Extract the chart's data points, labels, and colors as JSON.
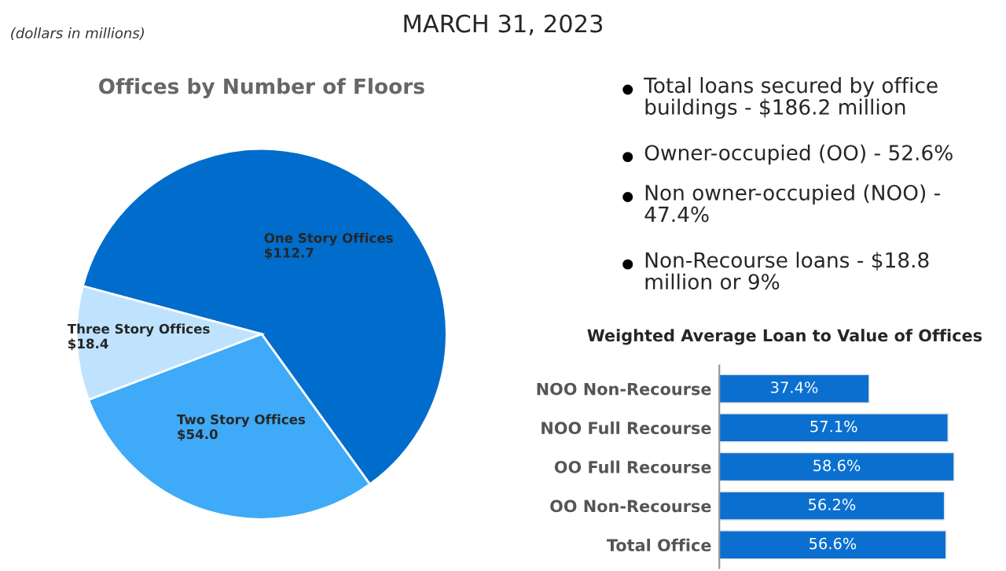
{
  "chart_data": [
    {
      "type": "other",
      "title": "MARCH 31, 2023",
      "annotations": [
        "(dollars in millions)",
        "Total loans secured by office\nbuildings - $186.2 million",
        "Owner-occupied (OO) - 52.6%",
        "Non owner-occupied (NOO) -\n47.4%",
        "Non-Recourse loans - $18.8\nmillion or 9%"
      ]
    },
    {
      "type": "pie",
      "title": "Offices by Number of Floors",
      "categories": [
        "One Story Offices",
        "Two Story Offices",
        "Three Story Offices"
      ],
      "values": [
        112.7,
        54.0,
        18.4
      ],
      "value_labels": [
        "$112.7",
        "$54.0",
        "$18.4"
      ],
      "colors": [
        "#006dcc",
        "#3faaf7",
        "#bfe3ff"
      ]
    },
    {
      "type": "bar",
      "orientation": "horizontal",
      "title": "Weighted Average Loan to Value of Offices",
      "categories": [
        "NOO Non-Recourse",
        "NOO Full Recourse",
        "OO Full Recourse",
        "OO Non-Recourse",
        "Total Office"
      ],
      "values": [
        37.4,
        57.1,
        58.6,
        56.2,
        56.6
      ],
      "value_labels": [
        "37.4%",
        "57.1%",
        "58.6%",
        "56.2%",
        "56.6%"
      ],
      "color": "#0b6fd0"
    }
  ]
}
